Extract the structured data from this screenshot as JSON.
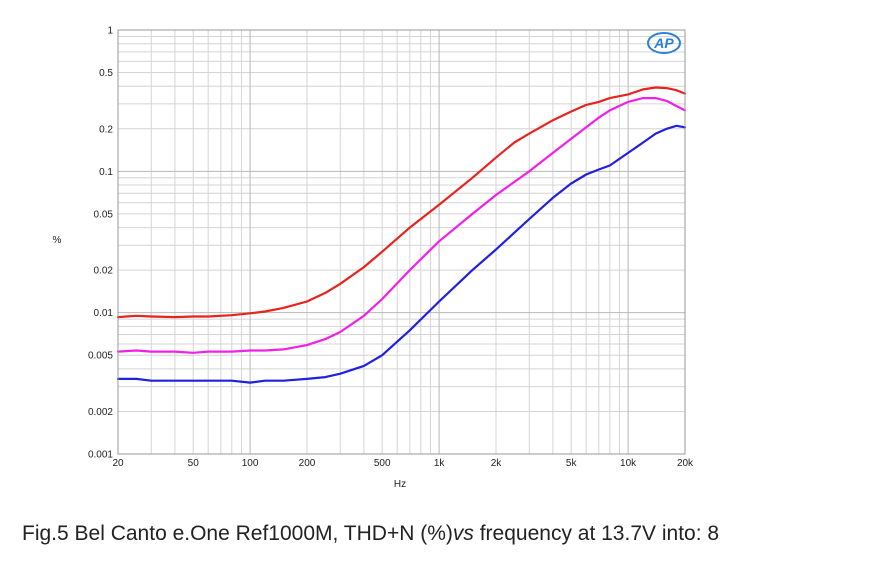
{
  "chart_data": {
    "type": "line",
    "xscale": "log",
    "yscale": "log",
    "xlim": [
      20,
      20000
    ],
    "ylim": [
      0.001,
      1
    ],
    "xlabel": "Hz",
    "ylabel": "%",
    "grid": true,
    "xticks": [
      {
        "value": 20,
        "label": "20"
      },
      {
        "value": 50,
        "label": "50"
      },
      {
        "value": 100,
        "label": "100"
      },
      {
        "value": 200,
        "label": "200"
      },
      {
        "value": 500,
        "label": "500"
      },
      {
        "value": 1000,
        "label": "1k"
      },
      {
        "value": 2000,
        "label": "2k"
      },
      {
        "value": 5000,
        "label": "5k"
      },
      {
        "value": 10000,
        "label": "10k"
      },
      {
        "value": 20000,
        "label": "20k"
      }
    ],
    "yticks": [
      {
        "value": 1,
        "label": "1"
      },
      {
        "value": 0.5,
        "label": "0.5"
      },
      {
        "value": 0.2,
        "label": "0.2"
      },
      {
        "value": 0.1,
        "label": "0.1"
      },
      {
        "value": 0.05,
        "label": "0.05"
      },
      {
        "value": 0.02,
        "label": "0.02"
      },
      {
        "value": 0.01,
        "label": "0.01"
      },
      {
        "value": 0.005,
        "label": "0.005"
      },
      {
        "value": 0.002,
        "label": "0.002"
      },
      {
        "value": 0.001,
        "label": "0.001"
      }
    ],
    "series": [
      {
        "color": "#e8231e",
        "x": [
          20,
          25,
          30,
          40,
          50,
          60,
          80,
          100,
          120,
          150,
          200,
          250,
          300,
          400,
          500,
          700,
          1000,
          1500,
          2000,
          2500,
          3000,
          4000,
          5000,
          6000,
          7000,
          8000,
          10000,
          12000,
          14000,
          16000,
          18000,
          20000
        ],
        "y": [
          0.0093,
          0.0095,
          0.0094,
          0.0093,
          0.0094,
          0.0094,
          0.0096,
          0.0099,
          0.0102,
          0.0108,
          0.012,
          0.0138,
          0.016,
          0.021,
          0.027,
          0.04,
          0.058,
          0.09,
          0.125,
          0.16,
          0.185,
          0.23,
          0.265,
          0.295,
          0.31,
          0.33,
          0.35,
          0.38,
          0.392,
          0.388,
          0.375,
          0.355
        ]
      },
      {
        "color": "#f020e8",
        "x": [
          20,
          25,
          30,
          40,
          50,
          60,
          80,
          100,
          120,
          150,
          200,
          250,
          300,
          400,
          500,
          700,
          1000,
          1500,
          2000,
          3000,
          4000,
          5000,
          6000,
          7000,
          8000,
          10000,
          12000,
          14000,
          16000,
          18000,
          20000
        ],
        "y": [
          0.0053,
          0.0054,
          0.0053,
          0.0053,
          0.0052,
          0.0053,
          0.0053,
          0.0054,
          0.0054,
          0.0055,
          0.0059,
          0.0065,
          0.0073,
          0.0095,
          0.0125,
          0.02,
          0.032,
          0.05,
          0.068,
          0.1,
          0.135,
          0.17,
          0.205,
          0.24,
          0.27,
          0.31,
          0.33,
          0.33,
          0.315,
          0.29,
          0.27
        ]
      },
      {
        "color": "#2020e0",
        "x": [
          20,
          25,
          30,
          40,
          50,
          60,
          80,
          100,
          120,
          150,
          200,
          250,
          300,
          400,
          500,
          700,
          1000,
          1500,
          2000,
          3000,
          4000,
          5000,
          6000,
          7000,
          8000,
          10000,
          12000,
          14000,
          16000,
          18000,
          20000
        ],
        "y": [
          0.0034,
          0.0034,
          0.0033,
          0.0033,
          0.0033,
          0.0033,
          0.0033,
          0.0032,
          0.0033,
          0.0033,
          0.0034,
          0.0035,
          0.0037,
          0.0042,
          0.005,
          0.0075,
          0.012,
          0.02,
          0.028,
          0.046,
          0.065,
          0.082,
          0.095,
          0.103,
          0.11,
          0.135,
          0.16,
          0.185,
          0.2,
          0.21,
          0.205
        ]
      }
    ]
  },
  "logo": "AP",
  "caption": {
    "prefix": "Fig.5 Bel Canto e.One Ref1000M, THD+N (%)",
    "vs": "vs",
    "suffix": " frequency at 13.7V into: 8"
  }
}
